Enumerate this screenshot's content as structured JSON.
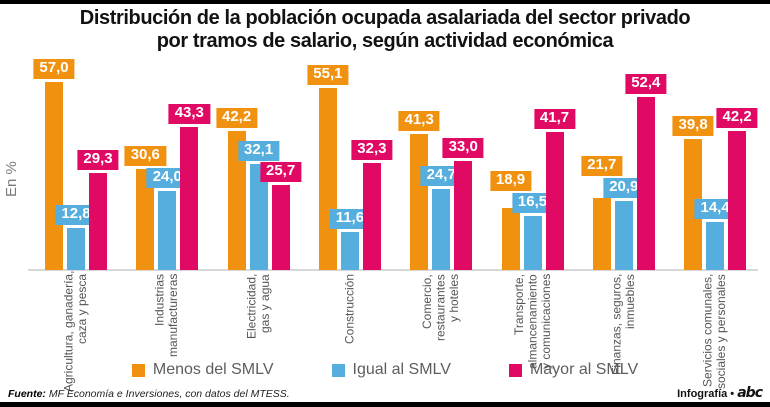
{
  "title": "Distribución de la población ocupada asalariada del sector privado\npor tramos de salario, según actividad económica",
  "chart_data": {
    "type": "bar",
    "title": "Distribución de la población ocupada asalariada del sector privado por tramos de salario, según actividad económica",
    "xlabel": "",
    "ylabel": "En %",
    "ylim": [
      0,
      60
    ],
    "grid": false,
    "legend_position": "bottom",
    "categories": [
      "Agricultura, ganadería,\ncaza y pesca",
      "Industrias\nmanufactureras",
      "Electricidad,\ngas y agua",
      "Construcción",
      "Comercio,\nrestaurantes\ny hoteles",
      "Transporte,\nalmancenamiento\ny comunicaciones",
      "Finanzas, seguros,\ninmuebles",
      "Servicios comunales,\nsociales y personales"
    ],
    "series": [
      {
        "name": "Menos del SMLV",
        "key": "menos-del-smlv",
        "color": "#F0920F",
        "values": [
          57.0,
          30.6,
          42.2,
          55.1,
          41.3,
          18.9,
          21.7,
          39.8
        ],
        "labels": [
          "57,0",
          "30,6",
          "42,2",
          "55,1",
          "41,3",
          "18,9",
          "21,7",
          "39,8"
        ]
      },
      {
        "name": "Igual al SMLV",
        "key": "igual-al-smlv",
        "color": "#55AEDE",
        "values": [
          12.8,
          24.0,
          32.1,
          11.6,
          24.7,
          16.5,
          20.9,
          14.4
        ],
        "labels": [
          "12,8",
          "24,0",
          "32,1",
          "11,6",
          "24,7",
          "16,5",
          "20,9",
          "14,4"
        ]
      },
      {
        "name": "Mayor al SMLV",
        "key": "mayor-al-smlv",
        "color": "#E00A64",
        "values": [
          29.3,
          43.3,
          25.7,
          32.3,
          33.0,
          41.7,
          52.4,
          42.2
        ],
        "labels": [
          "29,3",
          "43,3",
          "25,7",
          "32,3",
          "33,0",
          "41,7",
          "52,4",
          "42,2"
        ]
      }
    ]
  },
  "footer": {
    "source_label": "Fuente:",
    "source_text": "MF Economía e Inversiones, con datos del MTESS.",
    "credit": "Infografía •",
    "logo": "abc"
  }
}
